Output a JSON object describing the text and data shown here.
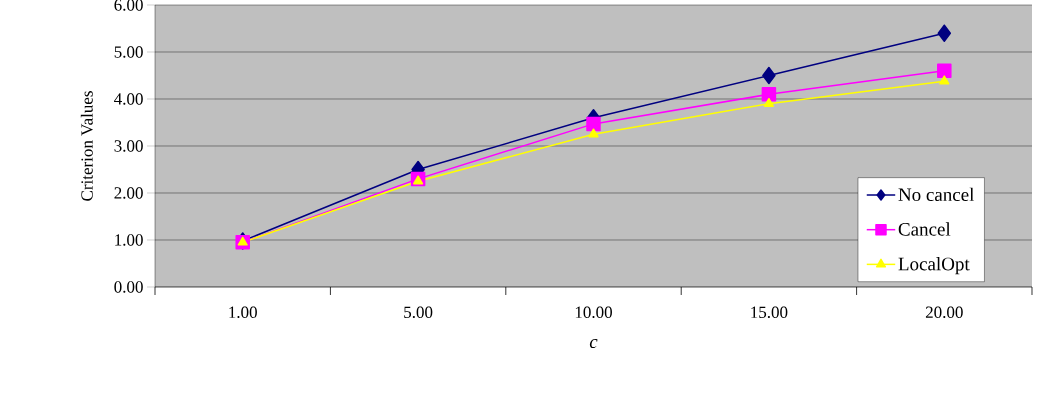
{
  "chart_data": {
    "type": "line",
    "xlabel": "c",
    "ylabel": "Criterion Values",
    "categories": [
      "1.00",
      "5.00",
      "10.00",
      "15.00",
      "20.00"
    ],
    "series": [
      {
        "name": "No cancel",
        "color": "#000080",
        "marker": "diamond",
        "values": [
          0.98,
          2.5,
          3.6,
          4.5,
          5.4
        ]
      },
      {
        "name": "Cancel",
        "color": "#ff00ff",
        "marker": "square",
        "values": [
          0.95,
          2.3,
          3.47,
          4.1,
          4.6
        ]
      },
      {
        "name": "LocalOpt",
        "color": "#ffff00",
        "marker": "triangle",
        "values": [
          0.95,
          2.25,
          3.25,
          3.9,
          4.38
        ]
      }
    ],
    "ylim": [
      0,
      6
    ],
    "yticks": [
      {
        "value": 0,
        "label": "0.00"
      },
      {
        "value": 1,
        "label": "1.00"
      },
      {
        "value": 2,
        "label": "2.00"
      },
      {
        "value": 3,
        "label": "3.00"
      },
      {
        "value": 4,
        "label": "4.00"
      },
      {
        "value": 5,
        "label": "5.00"
      },
      {
        "value": 6,
        "label": "6.00"
      }
    ],
    "grid": "y",
    "legend": "right"
  }
}
